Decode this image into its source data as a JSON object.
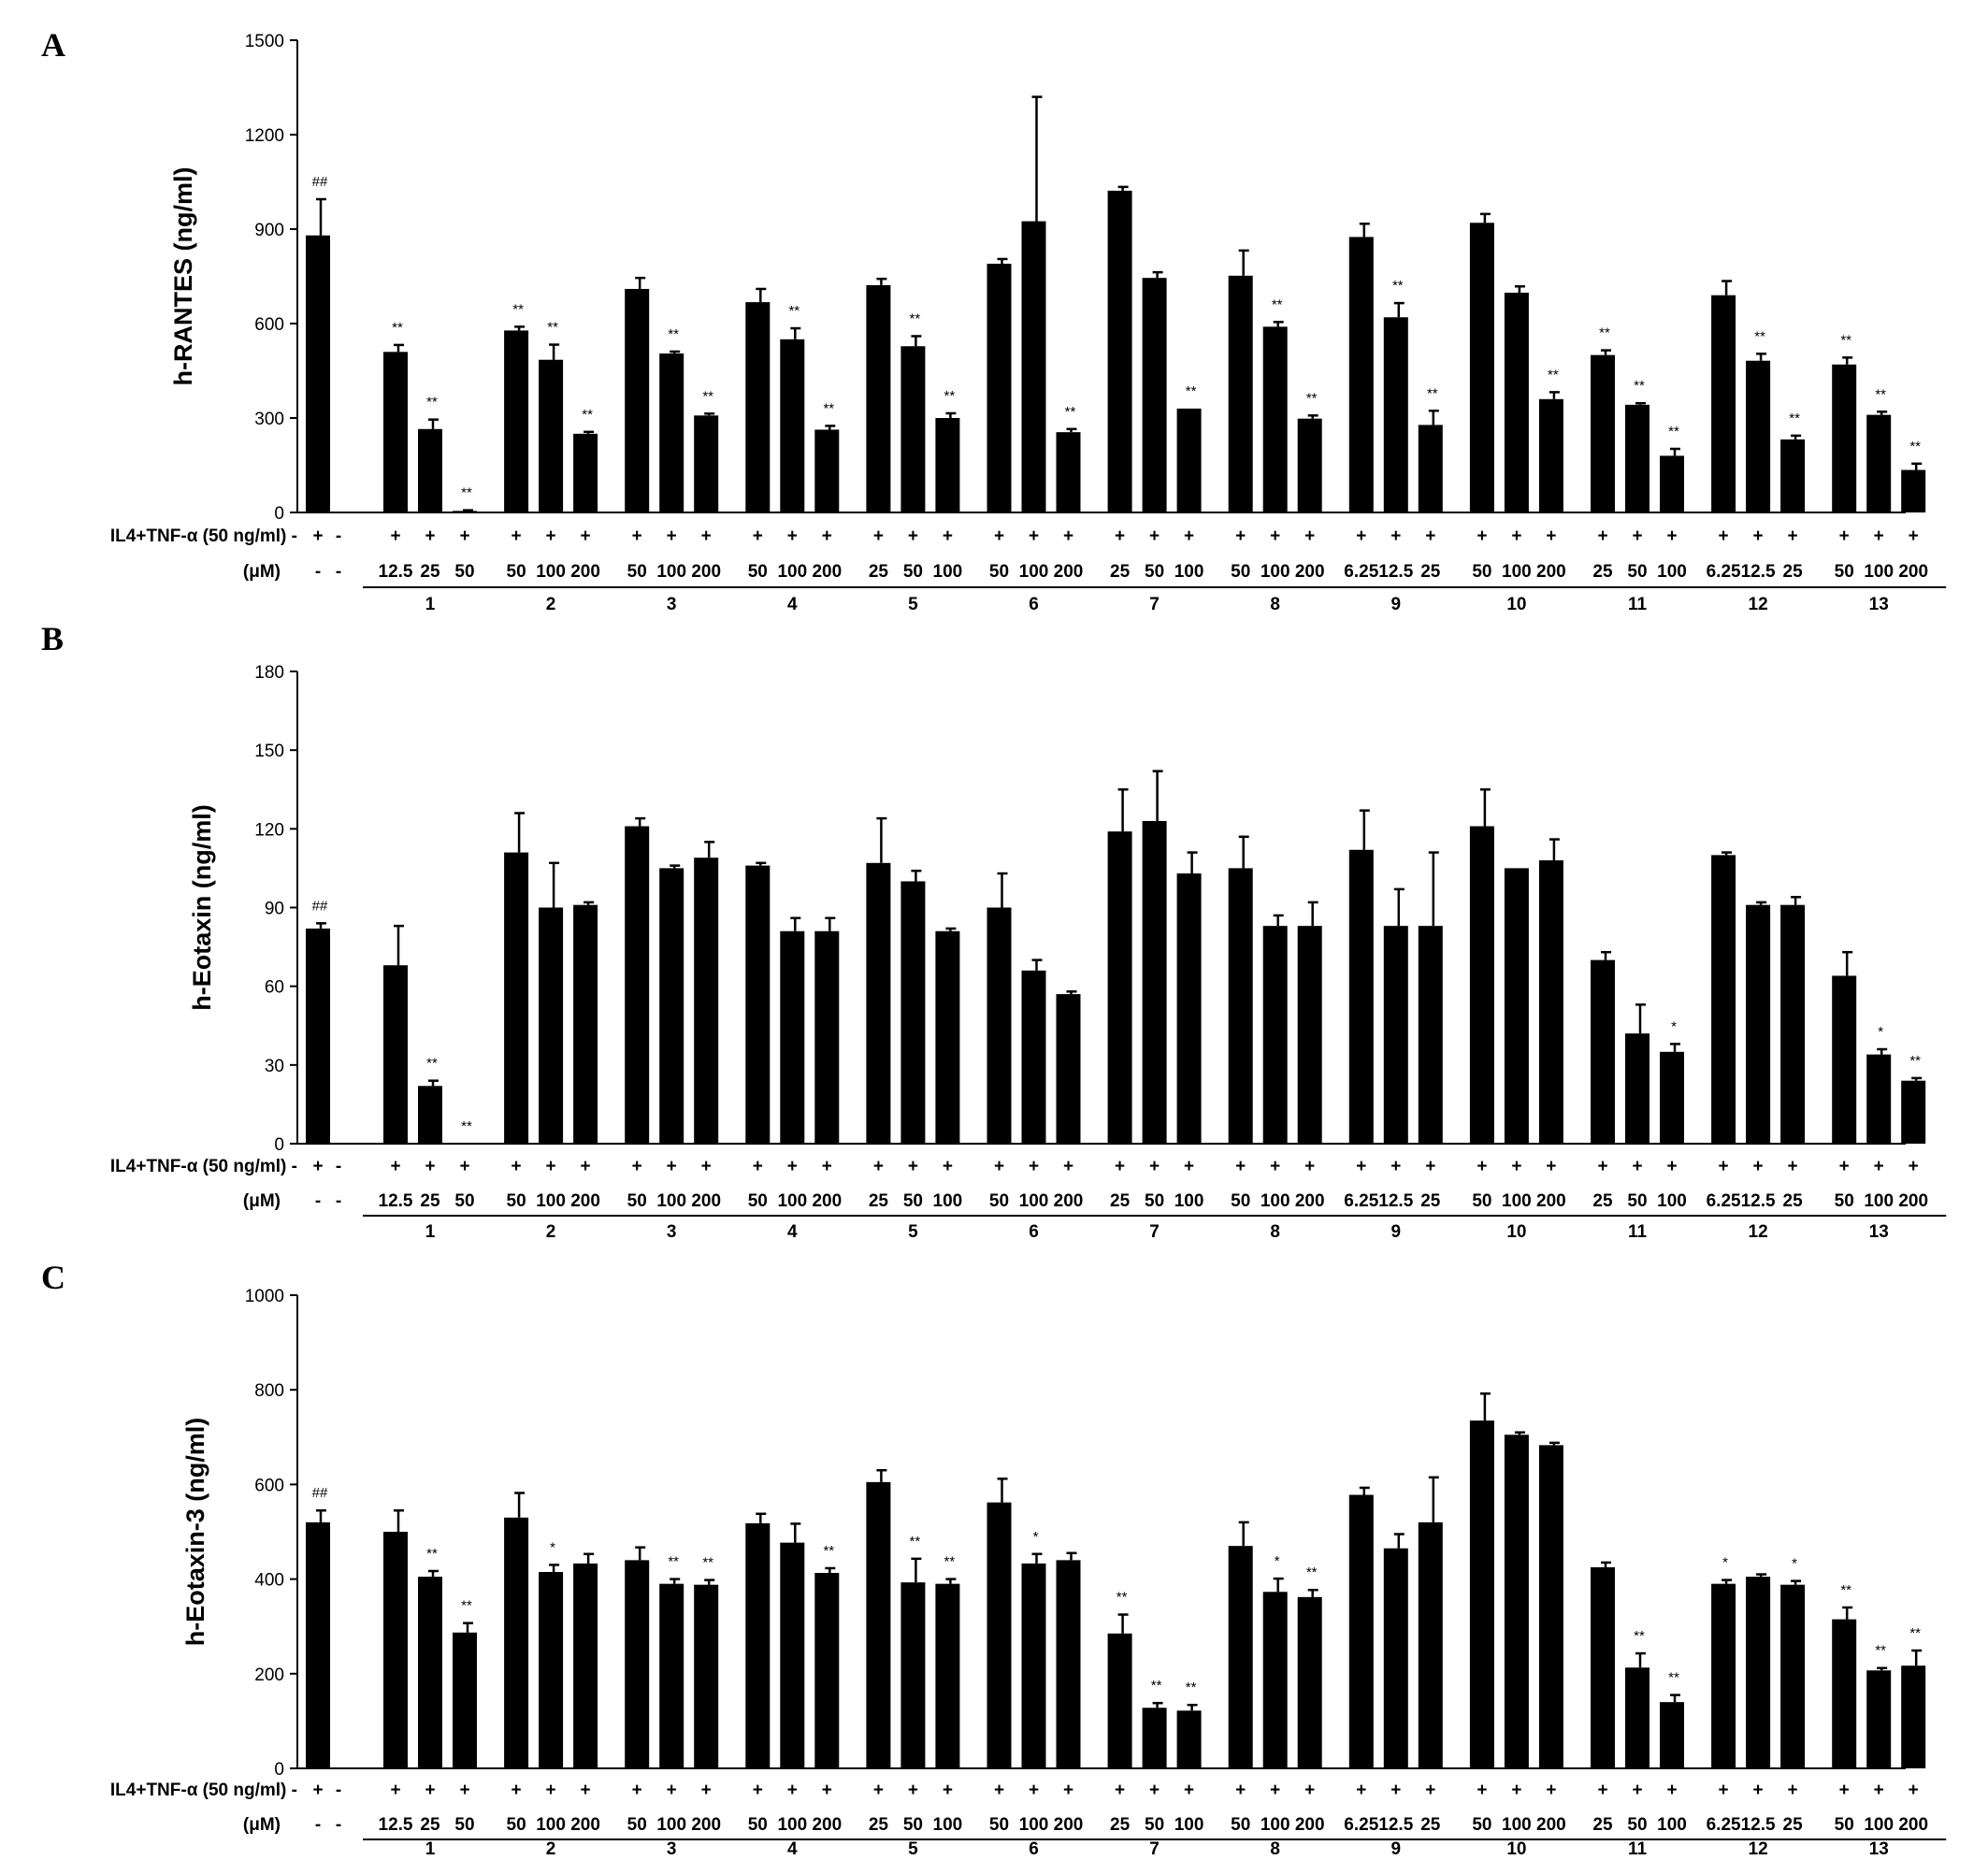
{
  "panels_common": {
    "row1_label": "IL4+TNF-α (50 ng/ml)",
    "row2_label": "(μM)",
    "control_signs": [
      "+",
      "-"
    ],
    "control_conc": [
      "-",
      "-"
    ],
    "groups": [
      {
        "id": "1",
        "conc": [
          "12.5",
          "25",
          "50"
        ]
      },
      {
        "id": "2",
        "conc": [
          "50",
          "100",
          "200"
        ]
      },
      {
        "id": "3",
        "conc": [
          "50",
          "100",
          "200"
        ]
      },
      {
        "id": "4",
        "conc": [
          "50",
          "100",
          "200"
        ]
      },
      {
        "id": "5",
        "conc": [
          "25",
          "50",
          "100"
        ]
      },
      {
        "id": "6",
        "conc": [
          "50",
          "100",
          "200"
        ]
      },
      {
        "id": "7",
        "conc": [
          "25",
          "50",
          "100"
        ]
      },
      {
        "id": "8",
        "conc": [
          "50",
          "100",
          "200"
        ]
      },
      {
        "id": "9",
        "conc": [
          "6.25",
          "12.5",
          "25"
        ]
      },
      {
        "id": "10",
        "conc": [
          "50",
          "100",
          "200"
        ]
      },
      {
        "id": "11",
        "conc": [
          "25",
          "50",
          "100"
        ]
      },
      {
        "id": "12",
        "conc": [
          "6.25",
          "12.5",
          "25"
        ]
      },
      {
        "id": "13",
        "conc": [
          "50",
          "100",
          "200"
        ]
      }
    ]
  },
  "chart_data": [
    {
      "panel": "A",
      "type": "bar",
      "ylabel": "h-RANTES (ng/ml)",
      "ylim": [
        0,
        1500
      ],
      "yticks": [
        0,
        300,
        600,
        900,
        1200,
        1500
      ],
      "control": {
        "value": 880,
        "err": 115,
        "mark": "##"
      },
      "values": [
        [
          510,
          265,
          5
        ],
        [
          578,
          485,
          250
        ],
        [
          710,
          505,
          308
        ],
        [
          668,
          550,
          263
        ],
        [
          722,
          528,
          300
        ],
        [
          790,
          925,
          255
        ],
        [
          1022,
          745,
          330
        ],
        [
          752,
          590,
          298
        ],
        [
          875,
          620,
          278
        ],
        [
          920,
          698,
          360
        ],
        [
          500,
          342,
          180
        ],
        [
          690,
          482,
          232
        ],
        [
          470,
          310,
          135
        ]
      ],
      "errors": [
        [
          22,
          30,
          2
        ],
        [
          12,
          48,
          6
        ],
        [
          35,
          6,
          6
        ],
        [
          42,
          35,
          12
        ],
        [
          20,
          32,
          15
        ],
        [
          15,
          395,
          10
        ],
        [
          12,
          18,
          0
        ],
        [
          80,
          15,
          10
        ],
        [
          42,
          45,
          45
        ],
        [
          28,
          20,
          22
        ],
        [
          15,
          5,
          22
        ],
        [
          45,
          22,
          12
        ],
        [
          22,
          10,
          20
        ]
      ],
      "marks": [
        [
          "**",
          "**",
          "**"
        ],
        [
          "**",
          "**",
          "**"
        ],
        [
          "",
          "**",
          "**"
        ],
        [
          "",
          "**",
          "**"
        ],
        [
          "",
          "**",
          "**"
        ],
        [
          "",
          "",
          "**"
        ],
        [
          "",
          "",
          "**"
        ],
        [
          "",
          "**",
          "**"
        ],
        [
          "",
          "**",
          "**"
        ],
        [
          "",
          "",
          "**"
        ],
        [
          "**",
          "**",
          "**"
        ],
        [
          "",
          "**",
          "**"
        ],
        [
          "**",
          "**",
          "**"
        ]
      ]
    },
    {
      "panel": "B",
      "type": "bar",
      "ylabel": "h-Eotaxin (ng/ml)",
      "ylim": [
        0,
        180
      ],
      "yticks": [
        0,
        30,
        60,
        90,
        120,
        150,
        180
      ],
      "control": {
        "value": 82,
        "err": 2,
        "mark": "##"
      },
      "values": [
        [
          68,
          22,
          0
        ],
        [
          111,
          90,
          91
        ],
        [
          121,
          105,
          109
        ],
        [
          106,
          81,
          81
        ],
        [
          107,
          100,
          81
        ],
        [
          90,
          66,
          57
        ],
        [
          119,
          123,
          103
        ],
        [
          105,
          83,
          83
        ],
        [
          112,
          83,
          83
        ],
        [
          121,
          105,
          108
        ],
        [
          70,
          42,
          35
        ],
        [
          110,
          91,
          91
        ],
        [
          64,
          34,
          24
        ]
      ],
      "errors": [
        [
          15,
          2,
          0
        ],
        [
          15,
          17,
          1
        ],
        [
          3,
          1,
          6
        ],
        [
          1,
          5,
          5
        ],
        [
          17,
          4,
          1
        ],
        [
          13,
          4,
          1
        ],
        [
          16,
          19,
          8
        ],
        [
          12,
          4,
          9
        ],
        [
          15,
          14,
          28
        ],
        [
          14,
          0,
          8
        ],
        [
          3,
          11,
          3
        ],
        [
          1,
          1,
          3
        ],
        [
          9,
          2,
          1
        ]
      ],
      "marks": [
        [
          "",
          "**",
          "**"
        ],
        [
          "",
          "",
          ""
        ],
        [
          "",
          "",
          ""
        ],
        [
          "",
          "",
          ""
        ],
        [
          "",
          "",
          ""
        ],
        [
          "",
          "",
          ""
        ],
        [
          "",
          "",
          ""
        ],
        [
          "",
          "",
          ""
        ],
        [
          "",
          "",
          ""
        ],
        [
          "",
          "",
          ""
        ],
        [
          "",
          "",
          "*"
        ],
        [
          "",
          "",
          ""
        ],
        [
          "",
          "*",
          "**"
        ]
      ]
    },
    {
      "panel": "C",
      "type": "bar",
      "ylabel": "h-Eotaxin-3 (ng/ml)",
      "ylim": [
        0,
        1000
      ],
      "yticks": [
        0,
        200,
        400,
        600,
        800,
        1000
      ],
      "control": {
        "value": 520,
        "err": 25,
        "mark": "##"
      },
      "values": [
        [
          500,
          405,
          287
        ],
        [
          530,
          415,
          433
        ],
        [
          440,
          390,
          388
        ],
        [
          518,
          477,
          413
        ],
        [
          605,
          393,
          390
        ],
        [
          562,
          433,
          440
        ],
        [
          285,
          128,
          122
        ],
        [
          470,
          373,
          362
        ],
        [
          578,
          465,
          520
        ],
        [
          735,
          705,
          683
        ],
        [
          425,
          213,
          140
        ],
        [
          390,
          405,
          388
        ],
        [
          315,
          207,
          217
        ]
      ],
      "errors": [
        [
          45,
          12,
          20
        ],
        [
          52,
          15,
          20
        ],
        [
          27,
          10,
          10
        ],
        [
          20,
          40,
          10
        ],
        [
          25,
          50,
          10
        ],
        [
          50,
          20,
          15
        ],
        [
          40,
          10,
          12
        ],
        [
          50,
          28,
          15
        ],
        [
          15,
          30,
          95
        ],
        [
          57,
          5,
          5
        ],
        [
          10,
          30,
          15
        ],
        [
          8,
          5,
          8
        ],
        [
          25,
          5,
          32
        ]
      ],
      "marks": [
        [
          "",
          "**",
          "**"
        ],
        [
          "",
          "*",
          ""
        ],
        [
          "",
          "**",
          "**"
        ],
        [
          "",
          "",
          "**"
        ],
        [
          "",
          "**",
          "**"
        ],
        [
          "",
          "*",
          ""
        ],
        [
          "**",
          "**",
          "**"
        ],
        [
          "",
          "*",
          "**"
        ],
        [
          "",
          "",
          ""
        ],
        [
          "",
          "",
          ""
        ],
        [
          "",
          "**",
          "**"
        ],
        [
          "*",
          "",
          "*"
        ],
        [
          "**",
          "**",
          "**"
        ]
      ]
    }
  ]
}
